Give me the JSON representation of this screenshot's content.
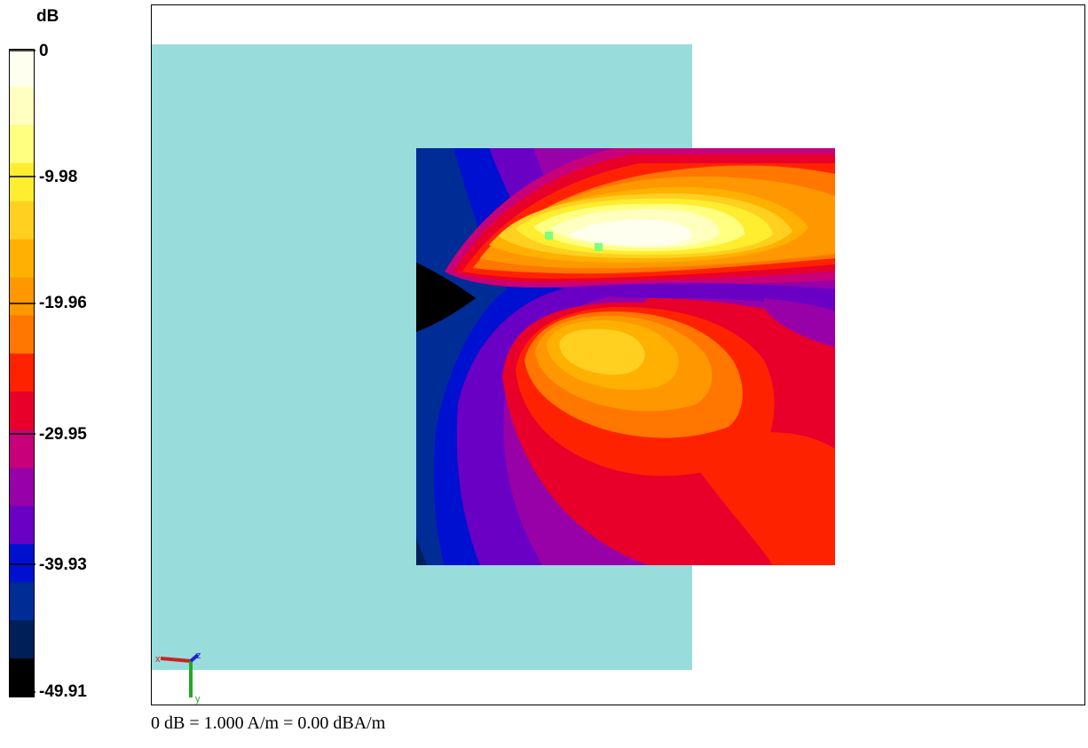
{
  "colorbar": {
    "unit": "dB",
    "ticks": [
      "0",
      "-9.98",
      "-19.96",
      "-29.95",
      "-39.93",
      "-49.91"
    ],
    "colors": [
      "#fffff0",
      "#ffffc0",
      "#ffff80",
      "#ffee30",
      "#ffd020",
      "#ffb000",
      "#ff9800",
      "#ff7700",
      "#ff2200",
      "#e8002a",
      "#c8007a",
      "#9800a8",
      "#6a00c4",
      "#0010d0",
      "#002c96",
      "#001f58",
      "#000000"
    ]
  },
  "viewport": {
    "phantom_color": "#98dcdc",
    "marker_color": "#7cff7c",
    "axes": {
      "x": "x",
      "y": "y",
      "z": "z"
    }
  },
  "footer": {
    "text": "0 dB = 1.000 A/m = 0.00 dBA/m"
  }
}
